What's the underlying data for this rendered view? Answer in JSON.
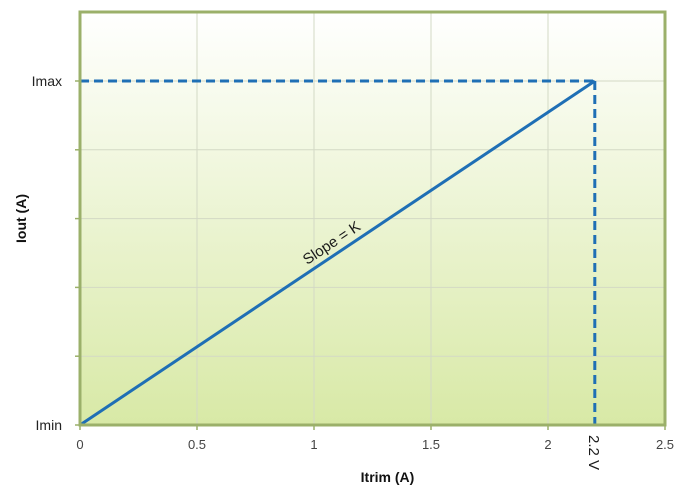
{
  "chart_data": {
    "type": "line",
    "title": "",
    "xlabel": "Itrim (A)",
    "ylabel": "Iout (A)",
    "xlim": [
      0,
      2.5
    ],
    "x_ticks": [
      0,
      0.5,
      1,
      1.5,
      2,
      2.5
    ],
    "x_tick_labels": [
      "0",
      "0.5",
      "1",
      "1.5",
      "2",
      "2.5"
    ],
    "ylim": [
      0,
      1
    ],
    "y_tick_labels": [
      {
        "value": 0,
        "label": "Imin"
      },
      {
        "value": 1,
        "label": "Imax"
      }
    ],
    "y_grid_lines": 5,
    "grid": true,
    "series": [
      {
        "x": [
          0,
          2.2
        ],
        "y": [
          0,
          1
        ],
        "color": "#1f6fb5"
      }
    ],
    "reference_lines": {
      "horizontal_at_y": 1,
      "vertical_at_x": 2.2,
      "style": "dashed",
      "color": "#1f6fb5"
    },
    "annotations": [
      {
        "text": "Slope = K"
      },
      {
        "text": "2.2 V"
      }
    ],
    "background_gradient": [
      "#ffffff",
      "#d8e9a6"
    ],
    "frame_color": "#9bb06a"
  }
}
